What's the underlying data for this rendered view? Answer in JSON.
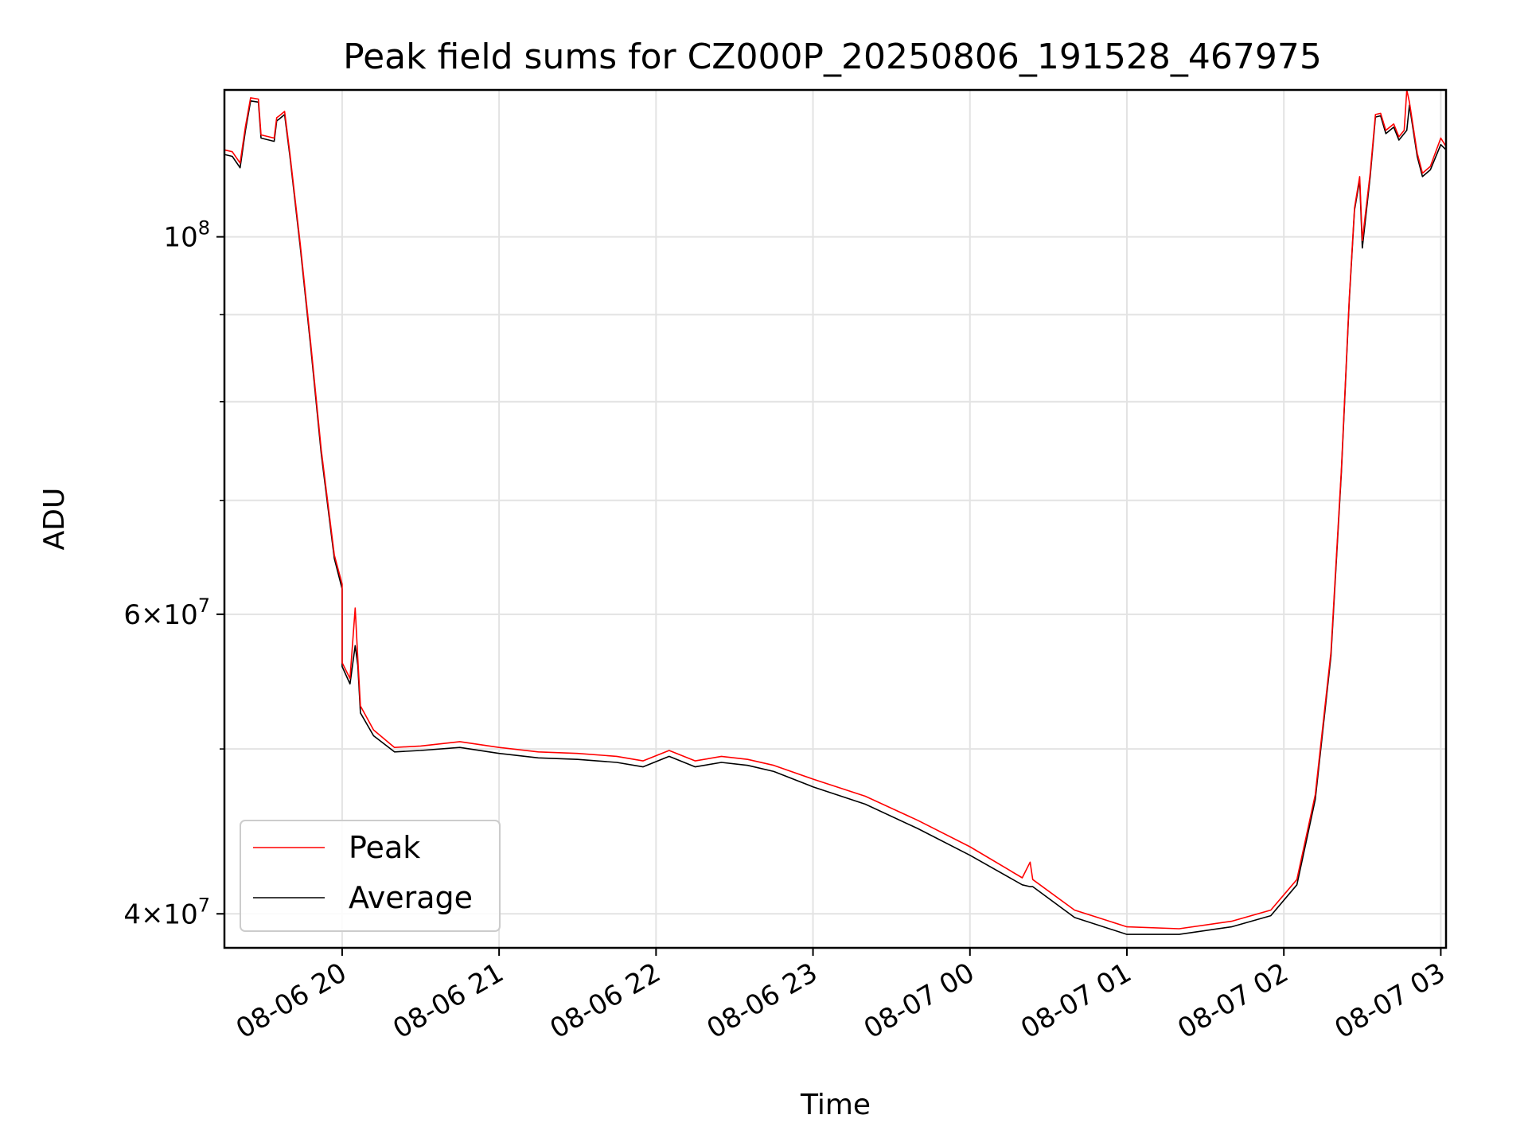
{
  "chart_data": {
    "type": "line",
    "title": "Peak field sums for CZ000P_20250806_191528_467975",
    "xlabel": "Time",
    "ylabel": "ADU",
    "yscale": "log",
    "grid": true,
    "legend_position": "lower-left",
    "xlim": [
      "2025-08-06 19:15",
      "2025-08-07 03:02"
    ],
    "ylim": [
      38200000,
      122000000
    ],
    "x_ticks": [
      {
        "value": "2025-08-06 20:00",
        "label": "08-06 20"
      },
      {
        "value": "2025-08-06 21:00",
        "label": "08-06 21"
      },
      {
        "value": "2025-08-06 22:00",
        "label": "08-06 22"
      },
      {
        "value": "2025-08-06 23:00",
        "label": "08-06 23"
      },
      {
        "value": "2025-08-07 00:00",
        "label": "08-07 00"
      },
      {
        "value": "2025-08-07 01:00",
        "label": "08-07 01"
      },
      {
        "value": "2025-08-07 02:00",
        "label": "08-07 02"
      },
      {
        "value": "2025-08-07 03:00",
        "label": "08-07 03"
      }
    ],
    "y_ticks": [
      {
        "value": 40000000,
        "base": "4",
        "exp": "7"
      },
      {
        "value": 60000000,
        "base": "6",
        "exp": "7"
      },
      {
        "value": 100000000,
        "base": "",
        "exp": "8"
      }
    ],
    "y_minor_ticks": [
      50000000,
      70000000,
      80000000,
      90000000
    ],
    "series": [
      {
        "name": "Peak",
        "color": "#ff0000",
        "points": [
          [
            "2025-08-06 19:15",
            112500000
          ],
          [
            "2025-08-06 19:18",
            112200000
          ],
          [
            "2025-08-06 19:21",
            110500000
          ],
          [
            "2025-08-06 19:23",
            116000000
          ],
          [
            "2025-08-06 19:25",
            120700000
          ],
          [
            "2025-08-06 19:28",
            120500000
          ],
          [
            "2025-08-06 19:29",
            114800000
          ],
          [
            "2025-08-06 19:34",
            114300000
          ],
          [
            "2025-08-06 19:35",
            117500000
          ],
          [
            "2025-08-06 19:36",
            117800000
          ],
          [
            "2025-08-06 19:38",
            118500000
          ],
          [
            "2025-08-06 19:40",
            112000000
          ],
          [
            "2025-08-06 19:44",
            99000000
          ],
          [
            "2025-08-06 19:48",
            86500000
          ],
          [
            "2025-08-06 19:52",
            75000000
          ],
          [
            "2025-08-06 19:57",
            65000000
          ],
          [
            "2025-08-06 20:00",
            62500000
          ],
          [
            "2025-08-06 20:00",
            56200000
          ],
          [
            "2025-08-06 20:03",
            55000000
          ],
          [
            "2025-08-06 20:05",
            60500000
          ],
          [
            "2025-08-06 20:06",
            56500000
          ],
          [
            "2025-08-06 20:07",
            53000000
          ],
          [
            "2025-08-06 20:12",
            51300000
          ],
          [
            "2025-08-06 20:20",
            50100000
          ],
          [
            "2025-08-06 20:30",
            50200000
          ],
          [
            "2025-08-06 20:45",
            50500000
          ],
          [
            "2025-08-06 21:00",
            50100000
          ],
          [
            "2025-08-06 21:15",
            49800000
          ],
          [
            "2025-08-06 21:30",
            49700000
          ],
          [
            "2025-08-06 21:45",
            49500000
          ],
          [
            "2025-08-06 21:55",
            49200000
          ],
          [
            "2025-08-06 22:05",
            49900000
          ],
          [
            "2025-08-06 22:15",
            49200000
          ],
          [
            "2025-08-06 22:25",
            49500000
          ],
          [
            "2025-08-06 22:35",
            49300000
          ],
          [
            "2025-08-06 22:45",
            48900000
          ],
          [
            "2025-08-06 23:00",
            48000000
          ],
          [
            "2025-08-06 23:20",
            46900000
          ],
          [
            "2025-08-06 23:40",
            45400000
          ],
          [
            "2025-08-07 00:00",
            43800000
          ],
          [
            "2025-08-07 00:20",
            42000000
          ],
          [
            "2025-08-07 00:23",
            42900000
          ],
          [
            "2025-08-07 00:24",
            41900000
          ],
          [
            "2025-08-07 00:40",
            40200000
          ],
          [
            "2025-08-07 01:00",
            39300000
          ],
          [
            "2025-08-07 01:20",
            39200000
          ],
          [
            "2025-08-07 01:40",
            39600000
          ],
          [
            "2025-08-07 01:55",
            40200000
          ],
          [
            "2025-08-07 02:05",
            41900000
          ],
          [
            "2025-08-07 02:12",
            47000000
          ],
          [
            "2025-08-07 02:18",
            57000000
          ],
          [
            "2025-08-07 02:22",
            73000000
          ],
          [
            "2025-08-07 02:25",
            92000000
          ],
          [
            "2025-08-07 02:27",
            104000000
          ],
          [
            "2025-08-07 02:29",
            108500000
          ],
          [
            "2025-08-07 02:30",
            99500000
          ],
          [
            "2025-08-07 02:33",
            109000000
          ],
          [
            "2025-08-07 02:35",
            118000000
          ],
          [
            "2025-08-07 02:37",
            118200000
          ],
          [
            "2025-08-07 02:39",
            115500000
          ],
          [
            "2025-08-07 02:42",
            116500000
          ],
          [
            "2025-08-07 02:44",
            114500000
          ],
          [
            "2025-08-07 02:46",
            115500000
          ],
          [
            "2025-08-07 02:47",
            122000000
          ],
          [
            "2025-08-07 02:48",
            120000000
          ],
          [
            "2025-08-07 02:51",
            112000000
          ],
          [
            "2025-08-07 02:53",
            109000000
          ],
          [
            "2025-08-07 02:56",
            110000000
          ],
          [
            "2025-08-07 03:00",
            114300000
          ],
          [
            "2025-08-07 03:02",
            113000000
          ]
        ]
      },
      {
        "name": "Average",
        "color": "#000000",
        "points": [
          [
            "2025-08-06 19:15",
            111800000
          ],
          [
            "2025-08-06 19:18",
            111500000
          ],
          [
            "2025-08-06 19:21",
            109800000
          ],
          [
            "2025-08-06 19:23",
            115400000
          ],
          [
            "2025-08-06 19:25",
            120200000
          ],
          [
            "2025-08-06 19:28",
            120000000
          ],
          [
            "2025-08-06 19:29",
            114300000
          ],
          [
            "2025-08-06 19:34",
            113800000
          ],
          [
            "2025-08-06 19:35",
            117000000
          ],
          [
            "2025-08-06 19:36",
            117300000
          ],
          [
            "2025-08-06 19:38",
            118000000
          ],
          [
            "2025-08-06 19:40",
            111600000
          ],
          [
            "2025-08-06 19:44",
            98600000
          ],
          [
            "2025-08-06 19:48",
            86100000
          ],
          [
            "2025-08-06 19:52",
            74600000
          ],
          [
            "2025-08-06 19:57",
            64700000
          ],
          [
            "2025-08-06 20:00",
            62100000
          ],
          [
            "2025-08-06 20:00",
            55900000
          ],
          [
            "2025-08-06 20:03",
            54600000
          ],
          [
            "2025-08-06 20:05",
            57500000
          ],
          [
            "2025-08-06 20:06",
            56000000
          ],
          [
            "2025-08-06 20:07",
            52500000
          ],
          [
            "2025-08-06 20:12",
            50900000
          ],
          [
            "2025-08-06 20:20",
            49800000
          ],
          [
            "2025-08-06 20:30",
            49900000
          ],
          [
            "2025-08-06 20:45",
            50100000
          ],
          [
            "2025-08-06 21:00",
            49700000
          ],
          [
            "2025-08-06 21:15",
            49400000
          ],
          [
            "2025-08-06 21:30",
            49300000
          ],
          [
            "2025-08-06 21:45",
            49100000
          ],
          [
            "2025-08-06 21:55",
            48800000
          ],
          [
            "2025-08-06 22:05",
            49500000
          ],
          [
            "2025-08-06 22:15",
            48800000
          ],
          [
            "2025-08-06 22:25",
            49100000
          ],
          [
            "2025-08-06 22:35",
            48900000
          ],
          [
            "2025-08-06 22:45",
            48500000
          ],
          [
            "2025-08-06 23:00",
            47500000
          ],
          [
            "2025-08-06 23:20",
            46400000
          ],
          [
            "2025-08-06 23:40",
            44900000
          ],
          [
            "2025-08-07 00:00",
            43300000
          ],
          [
            "2025-08-07 00:20",
            41600000
          ],
          [
            "2025-08-07 00:23",
            41500000
          ],
          [
            "2025-08-07 00:24",
            41500000
          ],
          [
            "2025-08-07 00:40",
            39800000
          ],
          [
            "2025-08-07 01:00",
            38900000
          ],
          [
            "2025-08-07 01:20",
            38900000
          ],
          [
            "2025-08-07 01:40",
            39300000
          ],
          [
            "2025-08-07 01:55",
            39900000
          ],
          [
            "2025-08-07 02:05",
            41600000
          ],
          [
            "2025-08-07 02:12",
            46700000
          ],
          [
            "2025-08-07 02:18",
            56700000
          ],
          [
            "2025-08-07 02:22",
            72700000
          ],
          [
            "2025-08-07 02:25",
            91700000
          ],
          [
            "2025-08-07 02:27",
            103700000
          ],
          [
            "2025-08-07 02:29",
            108000000
          ],
          [
            "2025-08-07 02:30",
            98500000
          ],
          [
            "2025-08-07 02:33",
            108500000
          ],
          [
            "2025-08-07 02:35",
            117600000
          ],
          [
            "2025-08-07 02:37",
            117800000
          ],
          [
            "2025-08-07 02:39",
            115000000
          ],
          [
            "2025-08-07 02:42",
            116000000
          ],
          [
            "2025-08-07 02:44",
            114000000
          ],
          [
            "2025-08-07 02:46",
            115000000
          ],
          [
            "2025-08-07 02:47",
            115500000
          ],
          [
            "2025-08-07 02:48",
            119500000
          ],
          [
            "2025-08-07 02:51",
            111500000
          ],
          [
            "2025-08-07 02:53",
            108500000
          ],
          [
            "2025-08-07 02:56",
            109500000
          ],
          [
            "2025-08-07 03:00",
            113300000
          ],
          [
            "2025-08-07 03:02",
            112500000
          ]
        ]
      }
    ]
  }
}
